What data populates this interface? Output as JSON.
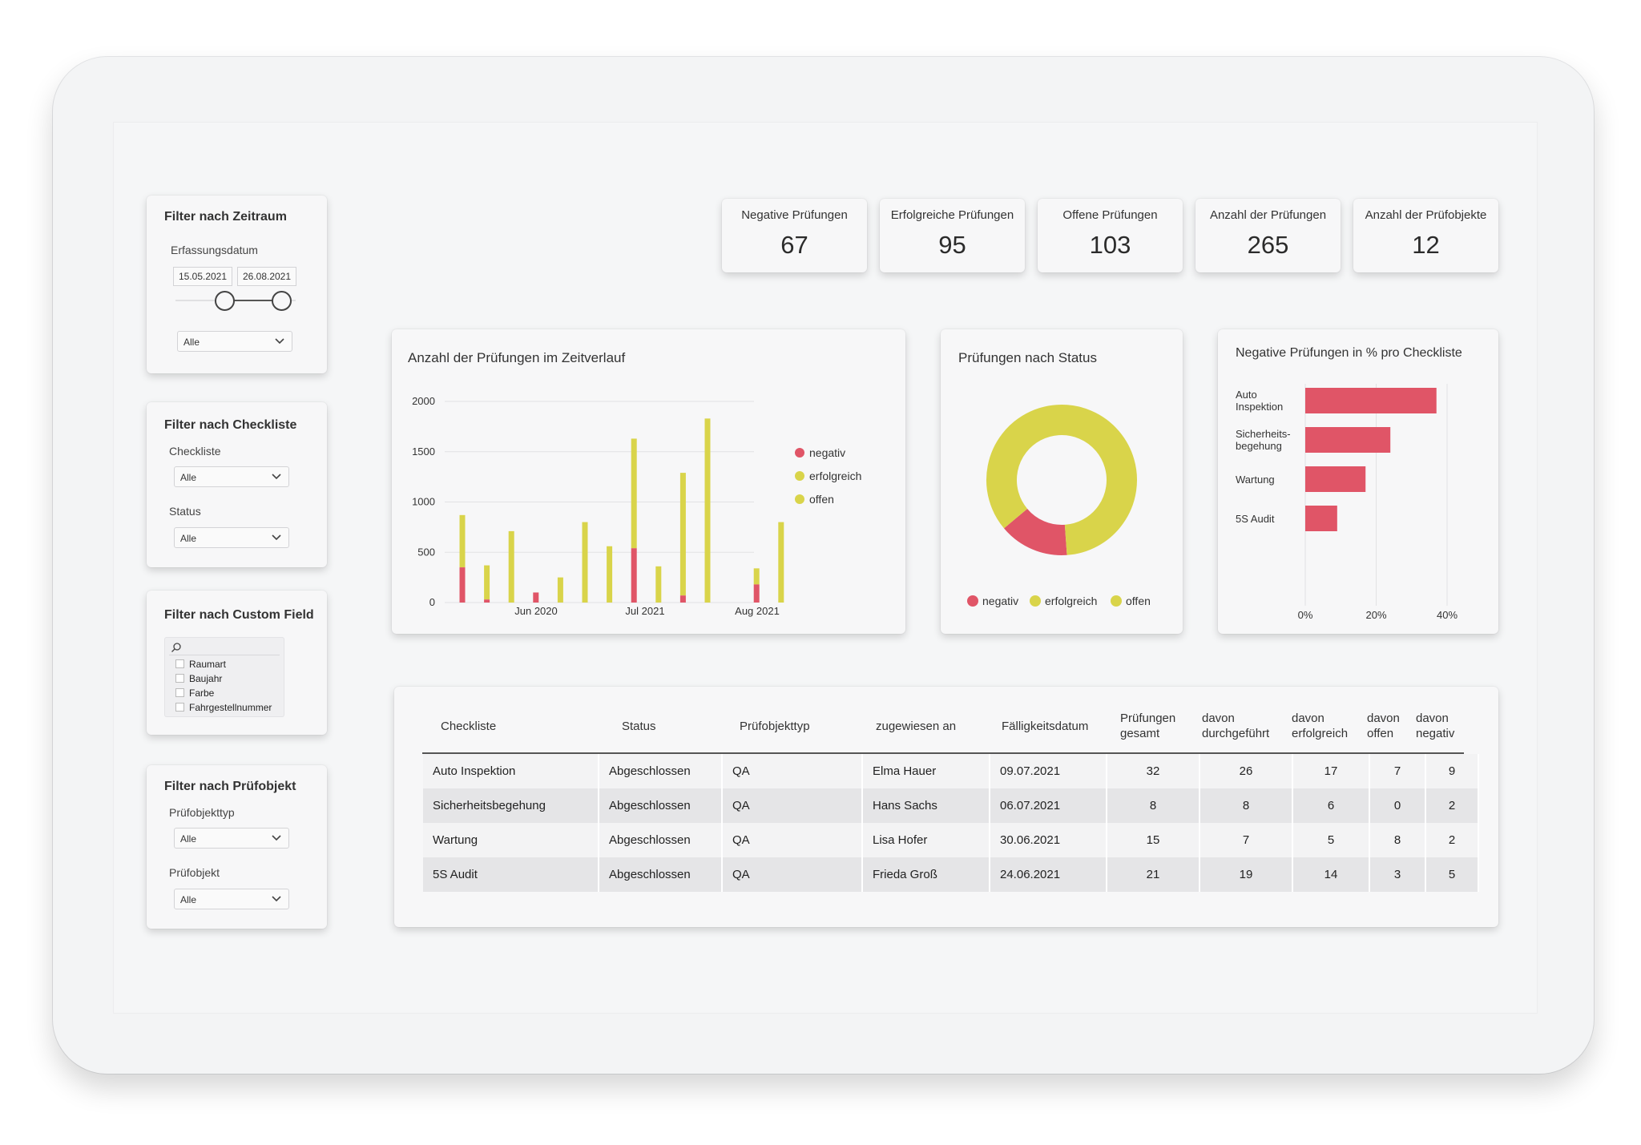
{
  "filters": {
    "zeitraum": {
      "title": "Filter nach Zeitraum",
      "label": "Erfassungsdatum",
      "date_from": "15.05.2021",
      "date_to": "26.08.2021",
      "select": "Alle"
    },
    "checkliste": {
      "title": "Filter nach Checkliste",
      "label1": "Checkliste",
      "select1": "Alle",
      "label2": "Status",
      "select2": "Alle"
    },
    "custom": {
      "title": "Filter nach Custom Field",
      "items": [
        "Raumart",
        "Baujahr",
        "Farbe",
        "Fahrgestellnummer"
      ]
    },
    "pruefobjekt": {
      "title": "Filter nach Prüfobjekt",
      "label1": "Prüfobjekttyp",
      "select1": "Alle",
      "label2": "Prüfobjekt",
      "select2": "Alle"
    }
  },
  "kpis": [
    {
      "label": "Negative Prüfungen",
      "value": "67"
    },
    {
      "label": "Erfolgreiche Prüfungen",
      "value": "95"
    },
    {
      "label": "Offene Prüfungen",
      "value": "103"
    },
    {
      "label": "Anzahl der Prüfungen",
      "value": "265"
    },
    {
      "label": "Anzahl der Prüfobjekte",
      "value": "12"
    }
  ],
  "colors": {
    "negativ": "#e05567",
    "erfolgreich": "#d9d44a",
    "offen": "#d9d44a",
    "axis": "#bfbfc2"
  },
  "chart_data": [
    {
      "type": "bar",
      "stacked": true,
      "title": "Anzahl der Prüfungen im Zeitverlauf",
      "ylim": [
        0,
        2000
      ],
      "yticks": [
        "0",
        "500",
        "1000",
        "1500",
        "2000"
      ],
      "xticks": [
        "Jun 2020",
        "Jul 2021",
        "Aug 2021"
      ],
      "grid": true,
      "legend": [
        "negativ",
        "erfolgreich",
        "offen"
      ],
      "legend_position": "right",
      "series": [
        {
          "name": "negativ",
          "values": [
            350,
            30,
            0,
            100,
            0,
            0,
            0,
            540,
            0,
            70,
            0,
            0,
            180,
            0
          ]
        },
        {
          "name": "erfolgreich",
          "values": [
            520,
            340,
            710,
            0,
            250,
            800,
            560,
            1090,
            360,
            1220,
            1830,
            0,
            160,
            800
          ]
        }
      ]
    },
    {
      "type": "pie",
      "donut": true,
      "title": "Prüfungen nach Status",
      "legend": [
        "negativ",
        "erfolgreich",
        "offen"
      ],
      "legend_position": "bottom",
      "slices": [
        {
          "name": "negativ",
          "value": 15
        },
        {
          "name": "erfolgreich",
          "value": 85
        }
      ]
    },
    {
      "type": "bar",
      "orientation": "horizontal",
      "title": "Negative Prüfungen in % pro Checkliste",
      "categories": [
        "Auto Inspektion",
        "Sicherheits-begehung",
        "Wartung",
        "5S Audit"
      ],
      "values": [
        37,
        24,
        17,
        9
      ],
      "xlim": [
        0,
        40
      ],
      "xticks": [
        "0%",
        "20%",
        "40%"
      ]
    }
  ],
  "table": {
    "headers": [
      [
        "Checkliste"
      ],
      [
        "Status"
      ],
      [
        "Prüfobjekttyp"
      ],
      [
        "zugewiesen an"
      ],
      [
        "Fälligkeitsdatum"
      ],
      [
        "Prüfungen",
        "gesamt"
      ],
      [
        "davon",
        "durchgeführt"
      ],
      [
        "davon",
        "erfolgreich"
      ],
      [
        "davon",
        "offen"
      ],
      [
        "davon",
        "negativ"
      ]
    ],
    "rows": [
      [
        "Auto Inspektion",
        "Abgeschlossen",
        "QA",
        "Elma Hauer",
        "09.07.2021",
        "32",
        "26",
        "17",
        "7",
        "9"
      ],
      [
        "Sicherheitsbegehung",
        "Abgeschlossen",
        "QA",
        "Hans Sachs",
        "06.07.2021",
        "8",
        "8",
        "6",
        "0",
        "2"
      ],
      [
        "Wartung",
        "Abgeschlossen",
        "QA",
        "Lisa Hofer",
        "30.06.2021",
        "15",
        "7",
        "5",
        "8",
        "2"
      ],
      [
        "5S Audit",
        "Abgeschlossen",
        "QA",
        "Frieda Groß",
        "24.06.2021",
        "21",
        "19",
        "14",
        "3",
        "5"
      ]
    ]
  }
}
